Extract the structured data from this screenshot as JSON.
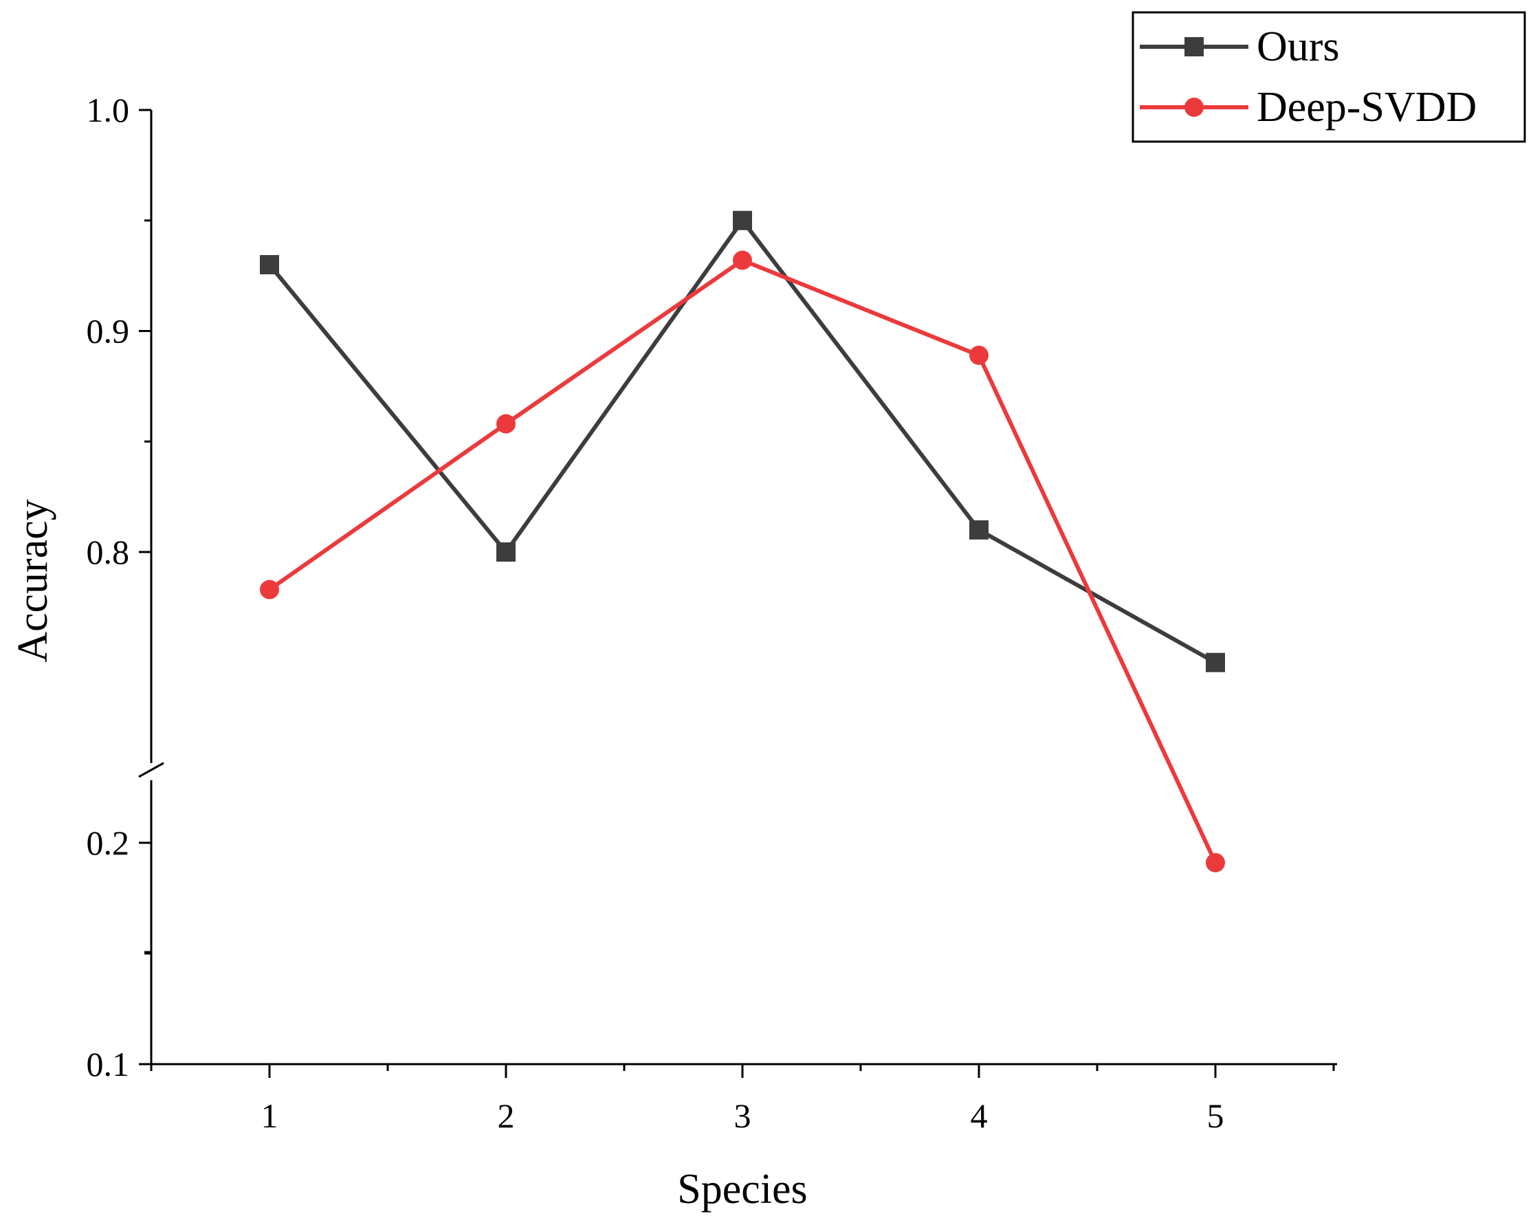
{
  "chart_data": {
    "type": "line",
    "title": "",
    "xlabel": "Species",
    "ylabel": "Accuracy",
    "x": [
      1,
      2,
      3,
      4,
      5
    ],
    "x_tick_labels": [
      "1",
      "2",
      "3",
      "4",
      "5"
    ],
    "xlim": [
      0.5,
      5.5
    ],
    "y_axis_break": true,
    "y_segments": [
      {
        "range": [
          0.1,
          0.225
        ],
        "ticks": [
          0.1,
          0.2
        ],
        "tick_labels": [
          "0.1",
          "0.2"
        ]
      },
      {
        "range": [
          0.7,
          1.0
        ],
        "ticks": [
          0.8,
          0.9,
          1.0
        ],
        "tick_labels": [
          "0.8",
          "0.9",
          "1.0"
        ]
      }
    ],
    "series": [
      {
        "name": "Ours",
        "marker": "square",
        "color": "#3d3d3d",
        "values": [
          0.93,
          0.8,
          0.95,
          0.81,
          0.75
        ]
      },
      {
        "name": "Deep-SVDD",
        "marker": "circle",
        "color": "#ec3a3c",
        "values": [
          0.783,
          0.858,
          0.932,
          0.889,
          0.191
        ]
      }
    ],
    "legend_position": "top-right",
    "grid": false
  }
}
